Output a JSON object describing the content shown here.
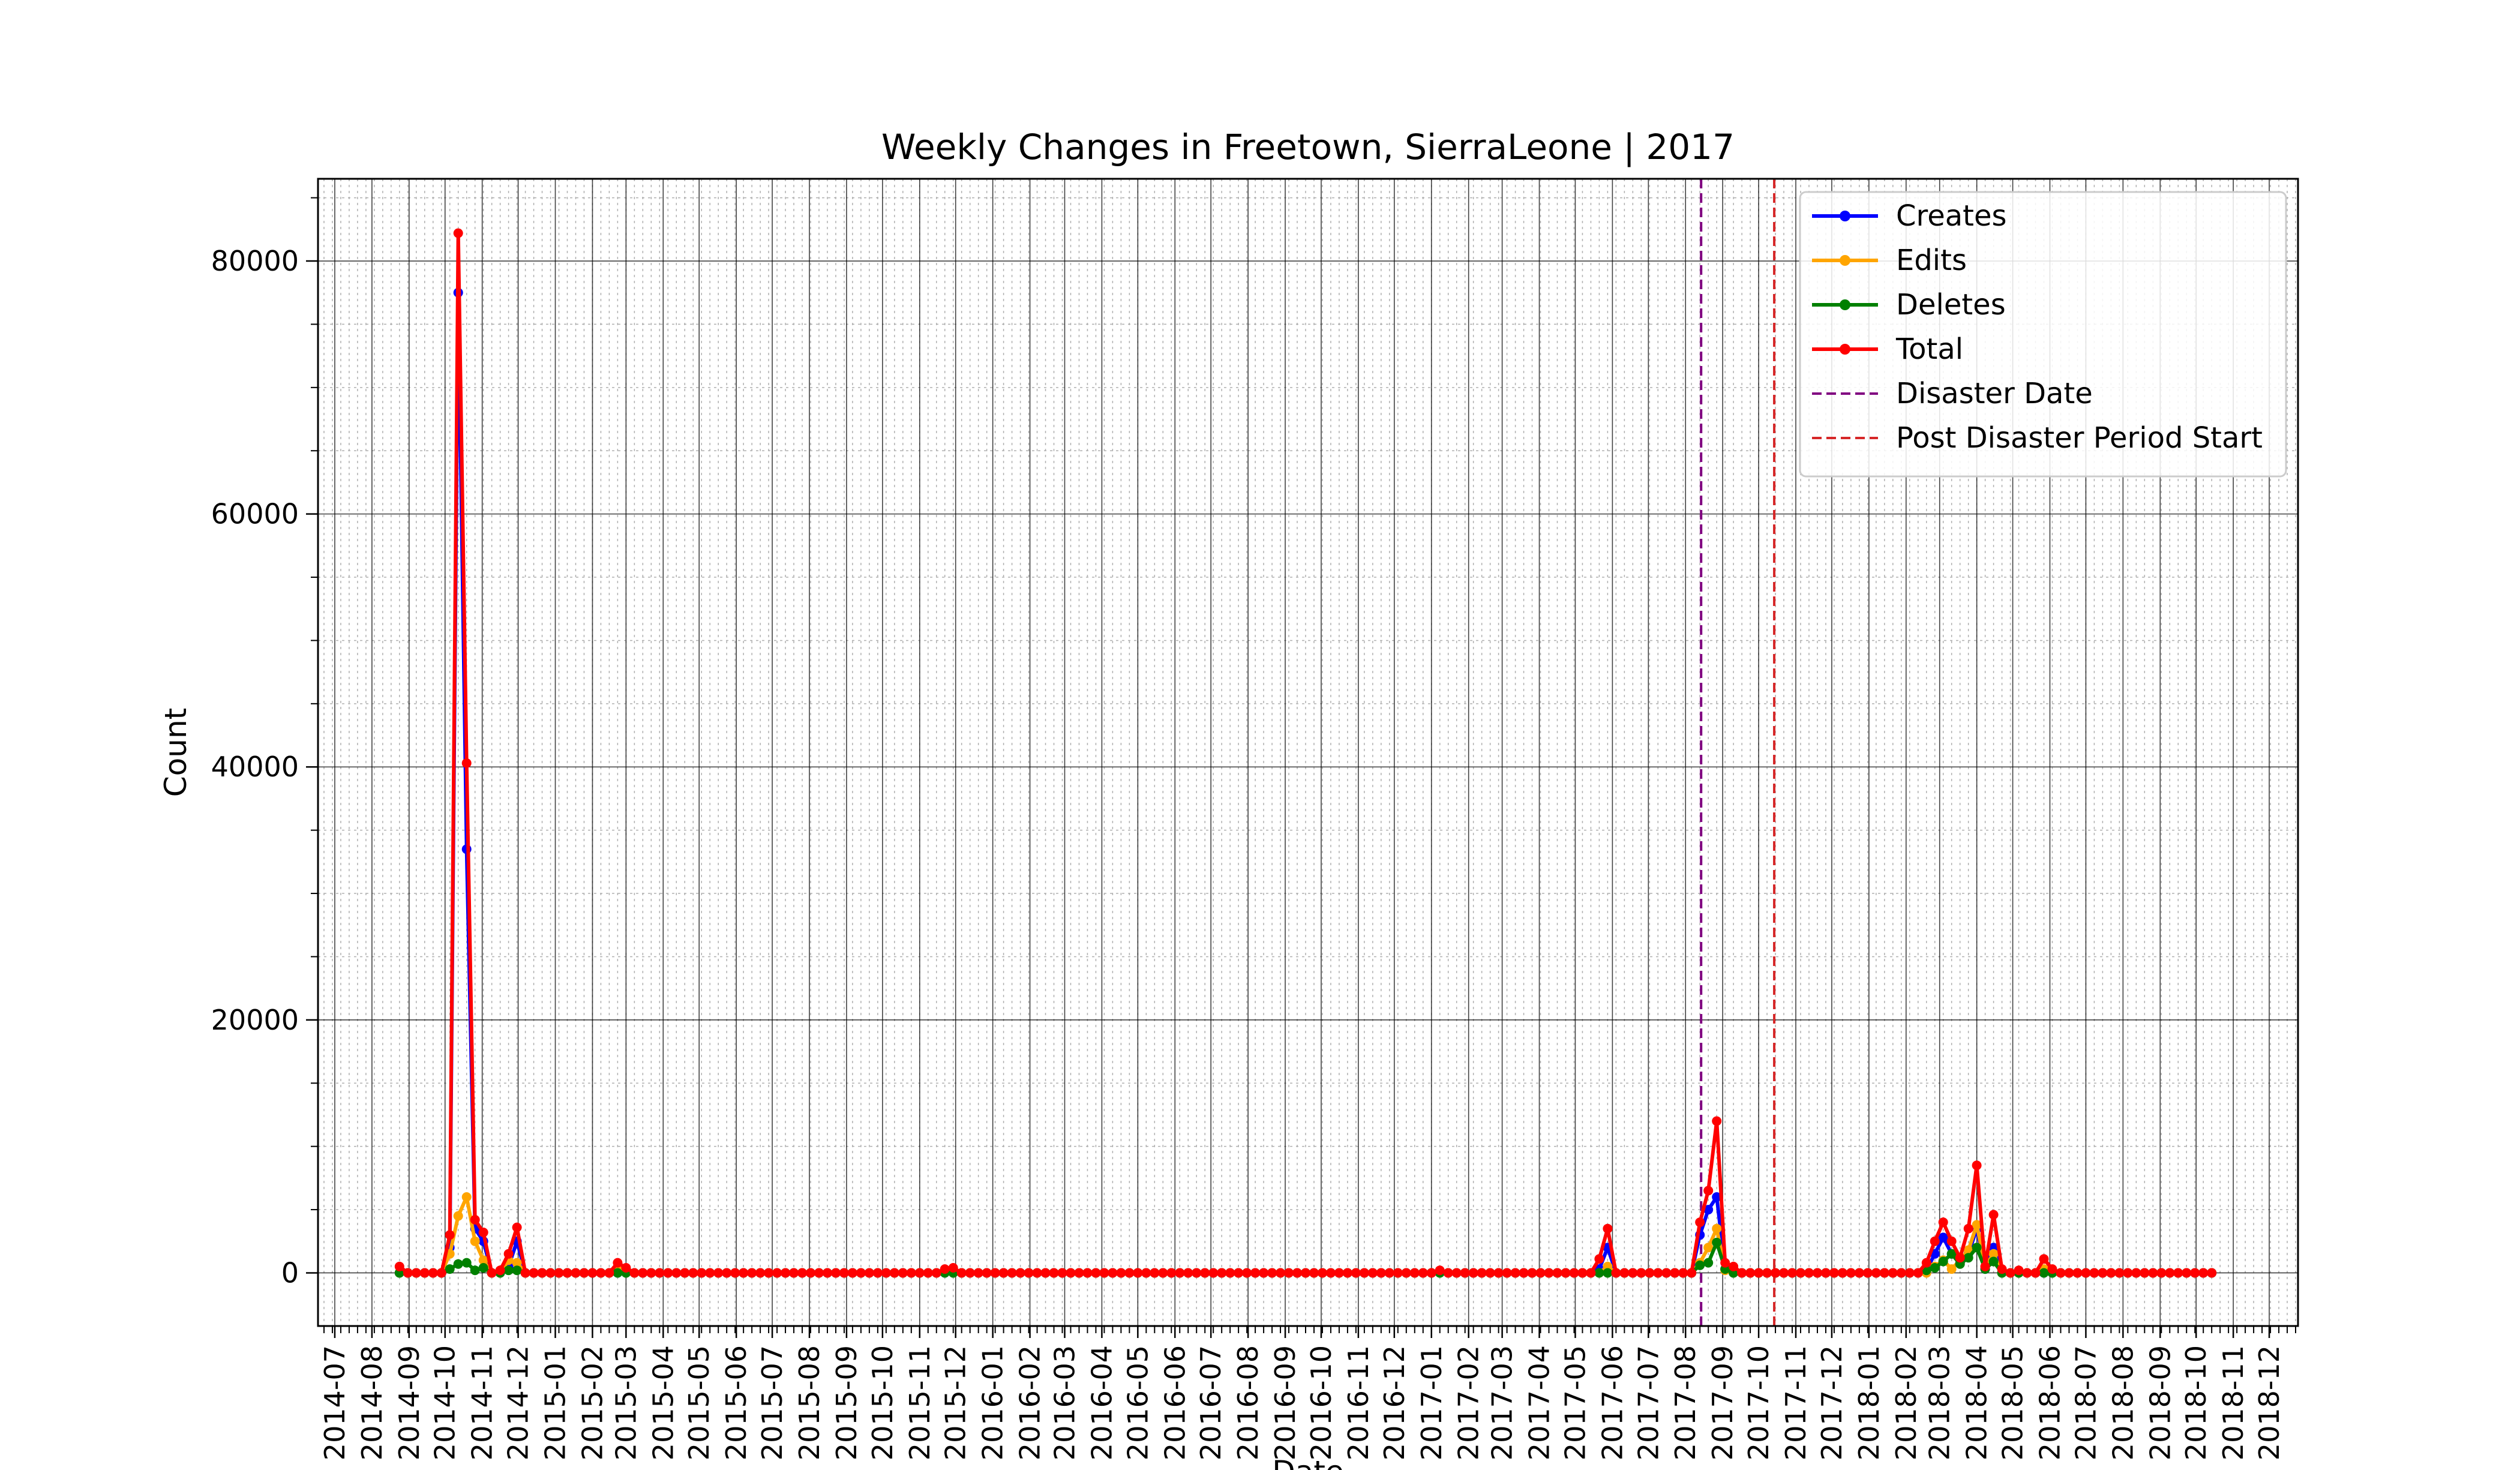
{
  "chart_data": {
    "type": "line",
    "title": "Weekly Changes in Freetown, SierraLeone | 2017",
    "xlabel": "Date",
    "ylabel": "Count",
    "xlim": [
      "2014-06-17",
      "2018-12-25"
    ],
    "ylim": [
      -4200,
      86500
    ],
    "grid": true,
    "legend_position": "top-right",
    "x_ticks": [
      "2014-07",
      "2014-08",
      "2014-09",
      "2014-10",
      "2014-11",
      "2014-12",
      "2015-01",
      "2015-02",
      "2015-03",
      "2015-04",
      "2015-05",
      "2015-06",
      "2015-07",
      "2015-08",
      "2015-09",
      "2015-10",
      "2015-11",
      "2015-12",
      "2016-01",
      "2016-02",
      "2016-03",
      "2016-04",
      "2016-05",
      "2016-06",
      "2016-07",
      "2016-08",
      "2016-09",
      "2016-10",
      "2016-11",
      "2016-12",
      "2017-01",
      "2017-02",
      "2017-03",
      "2017-04",
      "2017-05",
      "2017-06",
      "2017-07",
      "2017-08",
      "2017-09",
      "2017-10",
      "2017-11",
      "2017-12",
      "2018-01",
      "2018-02",
      "2018-03",
      "2018-04",
      "2018-05",
      "2018-06",
      "2018-07",
      "2018-08",
      "2018-09",
      "2018-10",
      "2018-11",
      "2018-12"
    ],
    "y_ticks": [
      0,
      20000,
      40000,
      60000,
      80000
    ],
    "weeks": {
      "start": "2014-08-24",
      "end": "2018-10-14",
      "default": 0
    },
    "series": [
      {
        "name": "Creates",
        "color": "#0000ff",
        "spikes": {
          "2014-10-05": 2000,
          "2014-10-12": 77500,
          "2014-10-19": 33500,
          "2014-10-26": 3500,
          "2014-11-02": 2500,
          "2014-11-23": 500,
          "2014-11-30": 2500,
          "2017-05-21": 300,
          "2017-05-28": 2000,
          "2017-08-13": 3000,
          "2017-08-20": 5000,
          "2017-08-27": 6000,
          "2017-09-03": 300,
          "2018-02-18": 200,
          "2018-02-25": 1500,
          "2018-03-04": 2800,
          "2018-03-11": 1500,
          "2018-03-18": 800,
          "2018-03-25": 1500,
          "2018-04-01": 3500,
          "2018-04-08": 300,
          "2018-04-15": 2000
        }
      },
      {
        "name": "Edits",
        "color": "#ffa500",
        "spikes": {
          "2014-10-05": 1500,
          "2014-10-12": 4500,
          "2014-10-19": 6000,
          "2014-10-26": 2500,
          "2014-11-02": 1000,
          "2014-11-23": 1000,
          "2014-11-30": 800,
          "2015-02-22": 300,
          "2015-11-22": 200,
          "2017-05-28": 500,
          "2017-08-13": 800,
          "2017-08-20": 2000,
          "2017-08-27": 3500,
          "2017-09-03": 200,
          "2018-02-25": 500,
          "2018-03-04": 1000,
          "2018-03-11": 300,
          "2018-03-18": 1000,
          "2018-03-25": 1800,
          "2018-04-01": 3800,
          "2018-04-08": 500,
          "2018-04-15": 1500,
          "2018-05-27": 300
        }
      },
      {
        "name": "Deletes",
        "color": "#008000",
        "spikes": {
          "2014-10-05": 300,
          "2014-10-12": 700,
          "2014-10-19": 800,
          "2014-10-26": 200,
          "2014-11-02": 400,
          "2014-11-23": 200,
          "2014-11-30": 200,
          "2017-08-13": 600,
          "2017-08-20": 800,
          "2017-08-27": 2400,
          "2017-09-03": 300,
          "2018-02-18": 200,
          "2018-02-25": 400,
          "2018-03-04": 900,
          "2018-03-11": 1500,
          "2018-03-18": 700,
          "2018-03-25": 1200,
          "2018-04-01": 2000,
          "2018-04-08": 300,
          "2018-04-15": 900
        }
      },
      {
        "name": "Total",
        "color": "#ff0000",
        "spikes": {
          "2014-08-24": 500,
          "2014-10-05": 3000,
          "2014-10-12": 82200,
          "2014-10-19": 40300,
          "2014-10-26": 4200,
          "2014-11-02": 3200,
          "2014-11-16": 200,
          "2014-11-23": 1500,
          "2014-11-30": 3600,
          "2015-02-22": 800,
          "2015-03-01": 400,
          "2015-11-22": 300,
          "2015-11-29": 400,
          "2017-01-08": 200,
          "2017-05-21": 1100,
          "2017-05-28": 3500,
          "2017-08-13": 4000,
          "2017-08-20": 6500,
          "2017-08-27": 12000,
          "2017-09-03": 800,
          "2017-09-10": 500,
          "2018-02-18": 800,
          "2018-02-25": 2500,
          "2018-03-04": 4000,
          "2018-03-11": 2500,
          "2018-03-18": 1200,
          "2018-03-25": 3500,
          "2018-04-01": 8500,
          "2018-04-08": 500,
          "2018-04-15": 4600,
          "2018-04-22": 300,
          "2018-05-06": 200,
          "2018-05-27": 1100,
          "2018-06-03": 300
        }
      }
    ],
    "markers": [
      {
        "name": "Disaster Date",
        "date": "2017-08-14",
        "color": "#800080"
      },
      {
        "name": "Post Disaster Period Start",
        "date": "2017-10-14",
        "color": "#d62728"
      }
    ]
  }
}
